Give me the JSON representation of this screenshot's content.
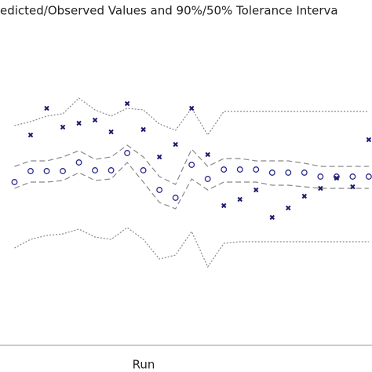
{
  "chart_data": {
    "type": "scatter",
    "title": "edicted/Observed Values and 90%/50% Tolerance Interva",
    "x_label": "Run",
    "x": [
      1,
      2,
      3,
      4,
      5,
      6,
      7,
      8,
      9,
      10,
      11,
      12,
      13,
      14,
      15,
      16,
      17,
      18,
      19,
      20,
      21,
      22,
      23
    ],
    "xlim": [
      0.1,
      23.2
    ],
    "ylim": [
      0,
      440
    ],
    "series": [
      {
        "style": "dotted",
        "color": "#888888",
        "values": [
          280,
          285,
          292,
          295,
          315,
          300,
          292,
          302,
          300,
          282,
          274,
          302,
          268,
          298,
          298,
          298,
          298,
          298,
          298,
          298,
          298,
          298,
          298
        ]
      },
      {
        "style": "dotted",
        "color": "#888888",
        "values": [
          124,
          135,
          140,
          142,
          148,
          138,
          135,
          150,
          135,
          110,
          115,
          145,
          100,
          130,
          132,
          132,
          132,
          132,
          132,
          132,
          132,
          132,
          132
        ]
      },
      {
        "style": "dashed",
        "color": "#888888",
        "values": [
          228,
          235,
          235,
          240,
          248,
          237,
          240,
          255,
          240,
          215,
          205,
          250,
          228,
          238,
          238,
          235,
          235,
          235,
          232,
          228,
          228,
          228,
          228
        ]
      },
      {
        "style": "dashed",
        "color": "#888888",
        "values": [
          200,
          208,
          208,
          210,
          220,
          210,
          212,
          233,
          208,
          182,
          174,
          212,
          198,
          208,
          208,
          208,
          204,
          204,
          202,
          200,
          200,
          200,
          200
        ]
      },
      {
        "style": "circle",
        "color": "#2a2a8a",
        "values": [
          208,
          222,
          222,
          222,
          233,
          223,
          223,
          245,
          223,
          198,
          188,
          230,
          212,
          224,
          224,
          224,
          220,
          220,
          220,
          215,
          215,
          215,
          215
        ]
      },
      {
        "style": "cross",
        "color": "#1a1a6e",
        "values": [
          null,
          268,
          302,
          278,
          283,
          287,
          272,
          308,
          275,
          240,
          256,
          302,
          243,
          178,
          186,
          198,
          163,
          175,
          190,
          200,
          213,
          202,
          262
        ]
      }
    ]
  }
}
